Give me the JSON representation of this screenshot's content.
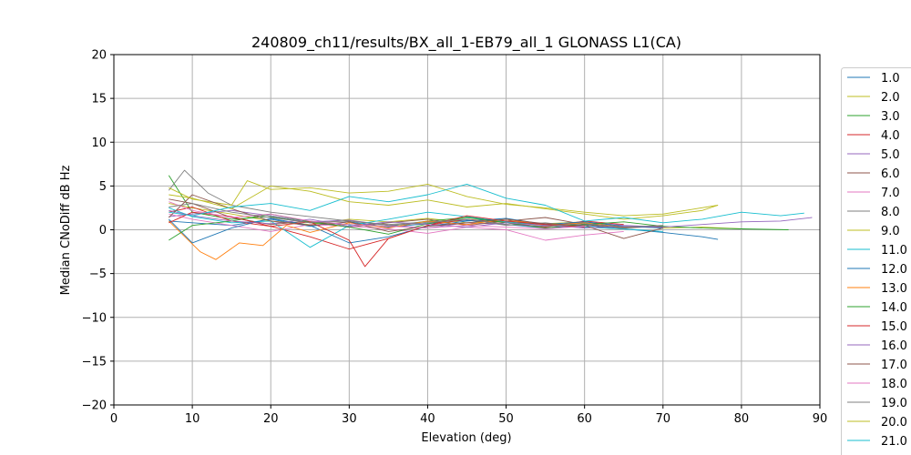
{
  "chart_data": {
    "type": "line",
    "title": "240809_ch11/results/BX_all_1-EB79_all_1 GLONASS L1(CA)",
    "xlabel": "Elevation (deg)",
    "ylabel": "Median CNoDiff dB Hz",
    "xlim": [
      0,
      90
    ],
    "ylim": [
      -20,
      20
    ],
    "xticks": [
      0,
      10,
      20,
      30,
      40,
      50,
      60,
      70,
      80,
      90
    ],
    "yticks": [
      -20,
      -15,
      -10,
      -5,
      0,
      5,
      10,
      15,
      20
    ],
    "grid": true,
    "legend_position": "right",
    "series": [
      {
        "name": "1.0",
        "color": "#1f77b4",
        "x": [
          7,
          10,
          15,
          20,
          25,
          30,
          35,
          40,
          45,
          50,
          55,
          60,
          65,
          70,
          75,
          77
        ],
        "y": [
          1.0,
          0.8,
          0.5,
          1.2,
          0.4,
          0.9,
          0.3,
          0.7,
          1.1,
          0.6,
          0.2,
          0.5,
          0.1,
          -0.3,
          -0.8,
          -1.1
        ]
      },
      {
        "name": "2.0",
        "color": "#bcbd22",
        "x": [
          7,
          10,
          15,
          20,
          25,
          30,
          35,
          40,
          45,
          50,
          55,
          60,
          65,
          70,
          75,
          80
        ],
        "y": [
          3.0,
          2.5,
          1.8,
          1.0,
          0.6,
          1.2,
          0.9,
          1.3,
          0.8,
          1.0,
          0.7,
          0.9,
          0.4,
          0.2,
          0.3,
          0.1
        ]
      },
      {
        "name": "3.0",
        "color": "#2ca02c",
        "x": [
          7,
          10,
          15,
          20,
          25,
          30,
          35,
          40,
          45,
          50,
          55,
          60,
          65,
          70,
          75,
          80,
          86
        ],
        "y": [
          6.2,
          2.0,
          1.2,
          1.5,
          0.8,
          0.6,
          0.4,
          1.0,
          1.4,
          0.9,
          0.5,
          0.7,
          0.3,
          0.4,
          0.2,
          0.1,
          0.0
        ]
      },
      {
        "name": "4.0",
        "color": "#d62728",
        "x": [
          7,
          10,
          15,
          20,
          25,
          30,
          35,
          40,
          45,
          50,
          55,
          60,
          65
        ],
        "y": [
          2.0,
          2.6,
          1.0,
          0.4,
          -0.8,
          -2.2,
          -1.0,
          0.5,
          1.2,
          0.8,
          0.3,
          1.0,
          0.6
        ]
      },
      {
        "name": "5.0",
        "color": "#9467bd",
        "x": [
          7,
          10,
          15,
          20,
          25,
          30,
          35,
          40,
          45,
          50,
          55,
          60,
          65,
          70
        ],
        "y": [
          1.5,
          1.8,
          2.2,
          1.6,
          0.9,
          1.1,
          0.5,
          0.2,
          0.8,
          0.6,
          0.4,
          0.9,
          0.5,
          0.3
        ]
      },
      {
        "name": "6.0",
        "color": "#8c564b",
        "x": [
          7,
          10,
          15,
          20,
          25,
          30,
          35,
          40,
          45,
          50,
          55,
          60,
          65,
          70
        ],
        "y": [
          3.5,
          3.0,
          1.4,
          0.6,
          1.0,
          0.3,
          0.8,
          1.2,
          0.5,
          1.0,
          1.4,
          0.6,
          0.2,
          0.4
        ]
      },
      {
        "name": "7.0",
        "color": "#e377c2",
        "x": [
          7,
          10,
          15,
          20,
          25,
          30,
          35,
          40,
          45,
          50,
          55,
          60,
          65
        ],
        "y": [
          1.8,
          1.2,
          0.5,
          -0.2,
          0.6,
          0.4,
          0.1,
          -0.4,
          0.3,
          0.0,
          -1.2,
          -0.6,
          -0.2
        ]
      },
      {
        "name": "8.0",
        "color": "#7f7f7f",
        "x": [
          7,
          9,
          12,
          15,
          20,
          25,
          30,
          35,
          40,
          45,
          50,
          55,
          60,
          65
        ],
        "y": [
          4.5,
          6.8,
          4.2,
          2.8,
          2.0,
          1.5,
          1.0,
          0.6,
          0.9,
          1.2,
          0.5,
          0.8,
          0.3,
          0.1
        ]
      },
      {
        "name": "9.0",
        "color": "#bcbd22",
        "x": [
          7,
          10,
          15,
          17,
          20,
          25,
          30,
          35,
          40,
          45,
          50,
          55,
          60,
          65,
          70,
          77
        ],
        "y": [
          4.8,
          3.5,
          2.8,
          5.6,
          4.6,
          4.8,
          4.2,
          4.4,
          5.2,
          3.8,
          2.9,
          2.5,
          2.0,
          1.6,
          1.8,
          2.8
        ]
      },
      {
        "name": "11.0",
        "color": "#17becf",
        "x": [
          7,
          10,
          15,
          20,
          25,
          30,
          35,
          40,
          45,
          50,
          55,
          60,
          65,
          70
        ],
        "y": [
          2.5,
          1.5,
          0.8,
          1.0,
          -2.0,
          0.5,
          1.2,
          2.0,
          1.5,
          0.9,
          0.6,
          0.3,
          0.1,
          -0.2
        ]
      },
      {
        "name": "12.0",
        "color": "#1f77b4",
        "x": [
          7,
          10,
          15,
          20,
          25,
          30,
          35,
          40,
          45,
          50,
          55,
          60,
          65,
          70
        ],
        "y": [
          1.2,
          -1.5,
          0.2,
          1.3,
          0.5,
          -1.5,
          -0.8,
          0.4,
          1.0,
          1.3,
          0.6,
          0.9,
          0.4,
          0.2
        ]
      },
      {
        "name": "13.0",
        "color": "#ff7f0e",
        "x": [
          7,
          11,
          13,
          16,
          19,
          22,
          25,
          30,
          35,
          40,
          45,
          50,
          55,
          60,
          65
        ],
        "y": [
          1.0,
          -2.5,
          -3.4,
          -1.5,
          -1.8,
          0.5,
          -0.3,
          0.8,
          0.2,
          1.0,
          0.6,
          1.2,
          0.5,
          0.8,
          0.3
        ]
      },
      {
        "name": "14.0",
        "color": "#2ca02c",
        "x": [
          7,
          10,
          15,
          20,
          25,
          30,
          35,
          40,
          45,
          50,
          55,
          60,
          65,
          70
        ],
        "y": [
          -1.2,
          0.5,
          1.0,
          1.8,
          0.9,
          0.3,
          -0.5,
          0.7,
          1.4,
          0.8,
          0.2,
          0.6,
          0.9,
          0.4
        ]
      },
      {
        "name": "15.0",
        "color": "#d62728",
        "x": [
          7,
          10,
          15,
          20,
          25,
          30,
          32,
          35,
          40,
          45,
          50,
          55,
          60
        ],
        "y": [
          0.8,
          2.0,
          1.5,
          0.4,
          0.9,
          -1.2,
          -4.2,
          -1.0,
          0.5,
          1.6,
          1.0,
          0.6,
          0.3
        ]
      },
      {
        "name": "16.0",
        "color": "#9467bd",
        "x": [
          7,
          10,
          15,
          20,
          25,
          30,
          35,
          40,
          45,
          50,
          55,
          60,
          65,
          70,
          75,
          80,
          85,
          89
        ],
        "y": [
          2.2,
          1.6,
          1.0,
          0.7,
          1.2,
          0.4,
          0.9,
          0.6,
          0.3,
          0.8,
          0.5,
          0.2,
          0.4,
          0.3,
          0.6,
          0.9,
          1.0,
          1.4
        ]
      },
      {
        "name": "17.0",
        "color": "#8c564b",
        "x": [
          7,
          10,
          15,
          20,
          25,
          30,
          35,
          40,
          45,
          50,
          55,
          60,
          65,
          70
        ],
        "y": [
          1.4,
          4.0,
          2.4,
          1.0,
          0.5,
          0.9,
          -0.2,
          0.4,
          0.8,
          1.2,
          0.7,
          0.5,
          -1.0,
          0.2
        ]
      },
      {
        "name": "18.0",
        "color": "#e377c2",
        "x": [
          7,
          10,
          15,
          20,
          25,
          30,
          35,
          40,
          45,
          50,
          55,
          60
        ],
        "y": [
          3.2,
          2.2,
          1.4,
          1.8,
          1.0,
          0.6,
          0.4,
          0.2,
          0.5,
          0.3,
          0.1,
          0.4
        ]
      },
      {
        "name": "19.0",
        "color": "#7f7f7f",
        "x": [
          7,
          10,
          15,
          20,
          25,
          30,
          35,
          40,
          45,
          50,
          55,
          60,
          65,
          70
        ],
        "y": [
          2.6,
          3.0,
          2.0,
          1.4,
          0.8,
          1.0,
          0.5,
          0.8,
          1.2,
          0.6,
          0.4,
          0.7,
          0.3,
          0.5
        ]
      },
      {
        "name": "20.0",
        "color": "#bcbd22",
        "x": [
          7,
          10,
          15,
          20,
          25,
          30,
          35,
          40,
          45,
          50,
          55,
          60,
          65,
          70,
          75,
          77
        ],
        "y": [
          4.0,
          3.6,
          2.4,
          5.0,
          4.4,
          3.2,
          2.8,
          3.4,
          2.6,
          3.0,
          2.4,
          1.8,
          1.2,
          1.6,
          2.2,
          2.8
        ]
      },
      {
        "name": "21.0",
        "color": "#17becf",
        "x": [
          7,
          10,
          15,
          20,
          25,
          30,
          35,
          40,
          45,
          50,
          55,
          60,
          65,
          70,
          75,
          80,
          85,
          88
        ],
        "y": [
          2.0,
          1.6,
          2.6,
          3.0,
          2.2,
          3.8,
          3.2,
          4.0,
          5.2,
          3.6,
          2.8,
          1.0,
          1.4,
          0.8,
          1.2,
          2.0,
          1.6,
          1.9
        ]
      }
    ]
  }
}
